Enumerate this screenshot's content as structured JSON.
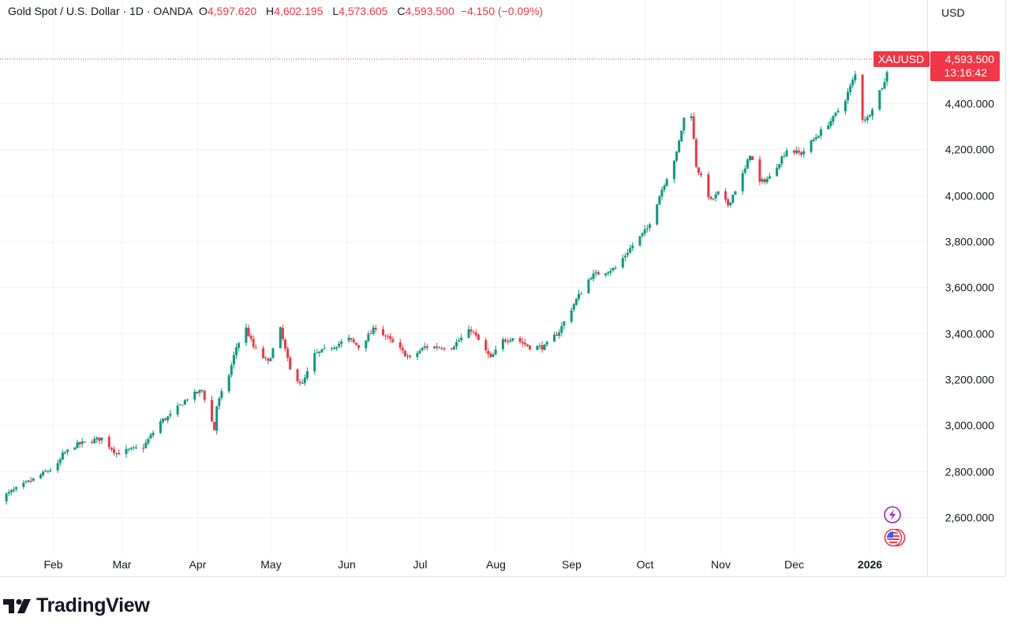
{
  "header": {
    "symbol_desc": "Gold Spot / U.S. Dollar · 1D · OANDA",
    "open_label": "O",
    "open": "4,597.620",
    "high_label": "H",
    "high": "4,602.195",
    "low_label": "L",
    "low": "4,573.605",
    "close_label": "C",
    "close": "4,593.500",
    "change": "−4.150 (−0.09%)"
  },
  "currency": "USD",
  "price_tag": {
    "symbol": "XAUUSD",
    "price": "4,593.500",
    "countdown": "13:16:42"
  },
  "brand": "TradingView",
  "colors": {
    "up": "#089981",
    "down": "#f23645",
    "grid": "#f0f3fa",
    "text": "#131722"
  },
  "icons": [
    "lightning-event-icon",
    "us-flag-event-icon"
  ],
  "chart_data": {
    "type": "candlestick",
    "title": "Gold Spot / U.S. Dollar · 1D · OANDA",
    "xlabel": "",
    "ylabel": "USD",
    "ylim": [
      2440,
      4800
    ],
    "y_ticks": [
      {
        "value": 2600,
        "label": "2,600.000"
      },
      {
        "value": 2800,
        "label": "2,800.000"
      },
      {
        "value": 3000,
        "label": "3,000.000"
      },
      {
        "value": 3200,
        "label": "3,200.000"
      },
      {
        "value": 3400,
        "label": "3,400.000"
      },
      {
        "value": 3600,
        "label": "3,600.000"
      },
      {
        "value": 3800,
        "label": "3,800.000"
      },
      {
        "value": 4000,
        "label": "4,000.000"
      },
      {
        "value": 4200,
        "label": "4,200.000"
      },
      {
        "value": 4400,
        "label": "4,400.000"
      }
    ],
    "x_ticks": [
      {
        "date": "2025-02-01",
        "label": "Feb"
      },
      {
        "date": "2025-03-01",
        "label": "Mar"
      },
      {
        "date": "2025-04-01",
        "label": "Apr"
      },
      {
        "date": "2025-05-01",
        "label": "May"
      },
      {
        "date": "2025-06-01",
        "label": "Jun"
      },
      {
        "date": "2025-07-01",
        "label": "Jul"
      },
      {
        "date": "2025-08-01",
        "label": "Aug"
      },
      {
        "date": "2025-09-01",
        "label": "Sep"
      },
      {
        "date": "2025-10-01",
        "label": "Oct"
      },
      {
        "date": "2025-11-01",
        "label": "Nov"
      },
      {
        "date": "2025-12-01",
        "label": "Dec"
      },
      {
        "date": "2026-01-01",
        "label": "2026",
        "bold": true
      }
    ],
    "last": {
      "open": 4597.62,
      "high": 4602.195,
      "low": 4573.605,
      "close": 4593.5
    },
    "approx_close": [
      [
        "2025-01-10",
        2679
      ],
      [
        "2025-01-23",
        2758
      ],
      [
        "2025-02-03",
        2826
      ],
      [
        "2025-02-05",
        2871
      ],
      [
        "2025-02-10",
        2912
      ],
      [
        "2025-02-21",
        2943
      ],
      [
        "2025-02-27",
        2878
      ],
      [
        "2025-03-10",
        2905
      ],
      [
        "2025-03-17",
        3015
      ],
      [
        "2025-03-21",
        3042
      ],
      [
        "2025-03-28",
        3118
      ],
      [
        "2025-04-03",
        3152
      ],
      [
        "2025-04-08",
        2980
      ],
      [
        "2025-04-09",
        3083
      ],
      [
        "2025-04-14",
        3220
      ],
      [
        "2025-04-17",
        3340
      ],
      [
        "2025-04-21",
        3420
      ],
      [
        "2025-04-24",
        3340
      ],
      [
        "2025-04-30",
        3272
      ],
      [
        "2025-05-05",
        3416
      ],
      [
        "2025-05-09",
        3238
      ],
      [
        "2025-05-14",
        3176
      ],
      [
        "2025-05-19",
        3306
      ],
      [
        "2025-05-26",
        3340
      ],
      [
        "2025-06-02",
        3375
      ],
      [
        "2025-06-06",
        3340
      ],
      [
        "2025-06-13",
        3426
      ],
      [
        "2025-06-20",
        3358
      ],
      [
        "2025-06-27",
        3289
      ],
      [
        "2025-07-03",
        3340
      ],
      [
        "2025-07-14",
        3340
      ],
      [
        "2025-07-22",
        3416
      ],
      [
        "2025-07-30",
        3289
      ],
      [
        "2025-08-04",
        3368
      ],
      [
        "2025-08-08",
        3382
      ],
      [
        "2025-08-15",
        3340
      ],
      [
        "2025-08-21",
        3340
      ],
      [
        "2025-08-27",
        3409
      ],
      [
        "2025-09-03",
        3546
      ],
      [
        "2025-09-09",
        3649
      ],
      [
        "2025-09-19",
        3683
      ],
      [
        "2025-09-25",
        3769
      ],
      [
        "2025-10-02",
        3855
      ],
      [
        "2025-10-08",
        4026
      ],
      [
        "2025-10-14",
        4181
      ],
      [
        "2025-10-17",
        4335
      ],
      [
        "2025-10-20",
        4352
      ],
      [
        "2025-10-22",
        4129
      ],
      [
        "2025-10-28",
        3975
      ],
      [
        "2025-10-31",
        4009
      ],
      [
        "2025-11-04",
        3958
      ],
      [
        "2025-11-11",
        4112
      ],
      [
        "2025-11-13",
        4181
      ],
      [
        "2025-11-17",
        4054
      ],
      [
        "2025-11-21",
        4078
      ],
      [
        "2025-11-28",
        4198
      ],
      [
        "2025-12-04",
        4181
      ],
      [
        "2025-12-11",
        4266
      ],
      [
        "2025-12-17",
        4335
      ],
      [
        "2025-12-22",
        4420
      ],
      [
        "2025-12-26",
        4523
      ],
      [
        "2025-12-29",
        4335
      ],
      [
        "2025-12-31",
        4335
      ],
      [
        "2026-01-05",
        4455
      ],
      [
        "2026-01-07",
        4489
      ],
      [
        "2026-01-09",
        4593.5
      ]
    ]
  }
}
